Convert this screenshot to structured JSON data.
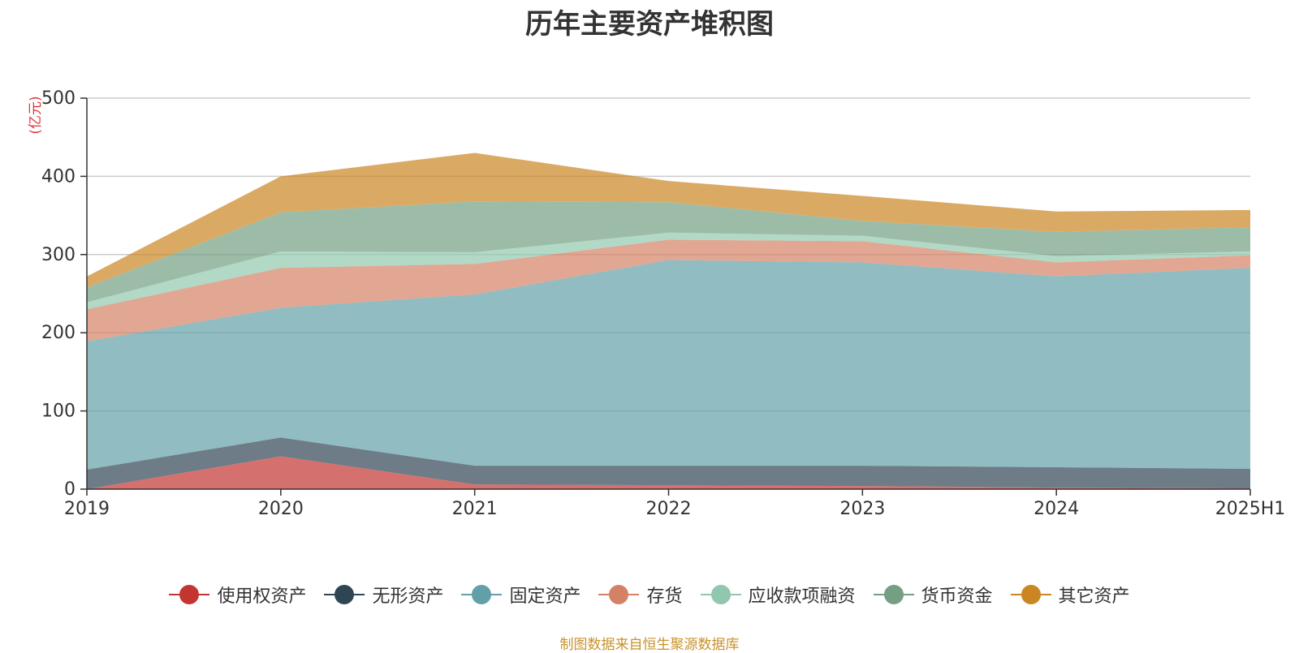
{
  "chart_data": {
    "type": "area",
    "stacked": true,
    "title": "历年主要资产堆积图",
    "y_unit": "(亿元)",
    "x": [
      "2019",
      "2020",
      "2021",
      "2022",
      "2023",
      "2024",
      "2025H1"
    ],
    "ylim": [
      0,
      500
    ],
    "yticks": [
      0,
      100,
      200,
      300,
      400,
      500
    ],
    "grid": true,
    "legend_position": "bottom",
    "series": [
      {
        "name": "使用权资产",
        "color": "#c23531",
        "values": [
          0,
          42,
          6,
          5,
          4,
          2,
          1
        ]
      },
      {
        "name": "无形资产",
        "color": "#2f4554",
        "values": [
          25,
          24,
          24,
          25,
          26,
          26,
          25
        ]
      },
      {
        "name": "固定资产",
        "color": "#61a0a8",
        "values": [
          164,
          166,
          219,
          263,
          260,
          244,
          257
        ]
      },
      {
        "name": "存货",
        "color": "#d48265",
        "values": [
          41,
          51,
          39,
          26,
          27,
          18,
          16
        ]
      },
      {
        "name": "应收款项融资",
        "color": "#91c7ae",
        "values": [
          9,
          21,
          15,
          9,
          7,
          8,
          5
        ]
      },
      {
        "name": "货币资金",
        "color": "#749f83",
        "values": [
          19,
          50,
          65,
          39,
          19,
          31,
          31
        ]
      },
      {
        "name": "其它资产",
        "color": "#ca8622",
        "values": [
          14,
          46,
          62,
          27,
          32,
          26,
          22
        ]
      }
    ],
    "source": "制图数据来自恒生聚源数据库"
  }
}
